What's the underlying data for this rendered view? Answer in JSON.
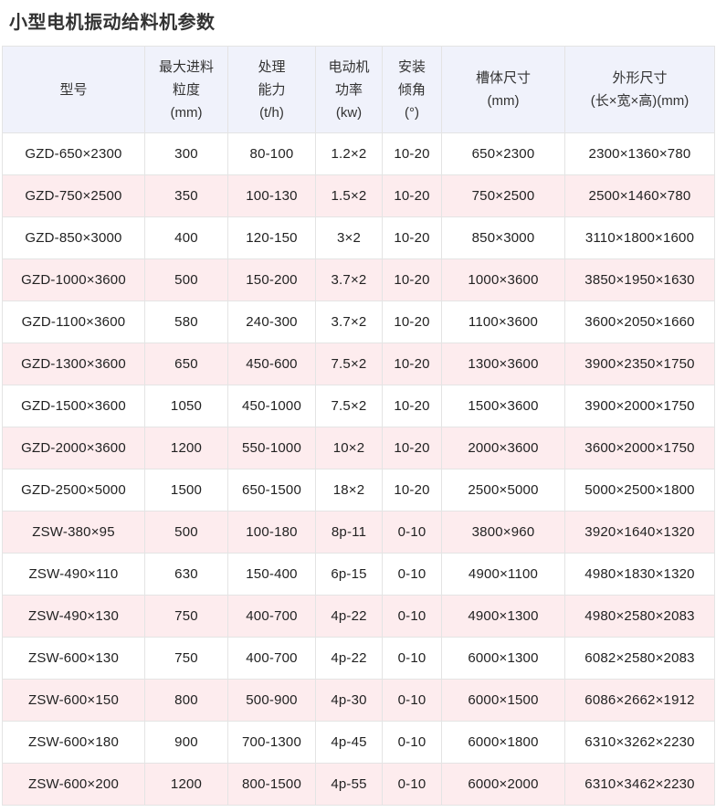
{
  "title": "小型电机振动给料机参数",
  "colors": {
    "header_bg": "#f0f2fb",
    "stripe_bg": "#fdecee",
    "border": "#e4e4e4",
    "title_text": "#333333",
    "cell_text": "#222222"
  },
  "table": {
    "columns": [
      {
        "key": "model",
        "label_lines": [
          "型号"
        ]
      },
      {
        "key": "max-feed-size",
        "label_lines": [
          "最大进料",
          "粒度",
          "(mm)"
        ]
      },
      {
        "key": "capacity",
        "label_lines": [
          "处理",
          "能力",
          "(t/h)"
        ]
      },
      {
        "key": "motor-power",
        "label_lines": [
          "电动机",
          "功率",
          "(kw)"
        ]
      },
      {
        "key": "install-angle",
        "label_lines": [
          "安装",
          "倾角",
          "(°)"
        ]
      },
      {
        "key": "trough-size",
        "label_lines": [
          "槽体尺寸",
          "(mm)"
        ]
      },
      {
        "key": "overall-size",
        "label_lines": [
          "外形尺寸",
          "(长×宽×高)(mm)"
        ]
      }
    ],
    "rows": [
      [
        "GZD-650×2300",
        "300",
        "80-100",
        "1.2×2",
        "10-20",
        "650×2300",
        "2300×1360×780"
      ],
      [
        "GZD-750×2500",
        "350",
        "100-130",
        "1.5×2",
        "10-20",
        "750×2500",
        "2500×1460×780"
      ],
      [
        "GZD-850×3000",
        "400",
        "120-150",
        "3×2",
        "10-20",
        "850×3000",
        "3110×1800×1600"
      ],
      [
        "GZD-1000×3600",
        "500",
        "150-200",
        "3.7×2",
        "10-20",
        "1000×3600",
        "3850×1950×1630"
      ],
      [
        "GZD-1100×3600",
        "580",
        "240-300",
        "3.7×2",
        "10-20",
        "1100×3600",
        "3600×2050×1660"
      ],
      [
        "GZD-1300×3600",
        "650",
        "450-600",
        "7.5×2",
        "10-20",
        "1300×3600",
        "3900×2350×1750"
      ],
      [
        "GZD-1500×3600",
        "1050",
        "450-1000",
        "7.5×2",
        "10-20",
        "1500×3600",
        "3900×2000×1750"
      ],
      [
        "GZD-2000×3600",
        "1200",
        "550-1000",
        "10×2",
        "10-20",
        "2000×3600",
        "3600×2000×1750"
      ],
      [
        "GZD-2500×5000",
        "1500",
        "650-1500",
        "18×2",
        "10-20",
        "2500×5000",
        "5000×2500×1800"
      ],
      [
        "ZSW-380×95",
        "500",
        "100-180",
        "8p-11",
        "0-10",
        "3800×960",
        "3920×1640×1320"
      ],
      [
        "ZSW-490×110",
        "630",
        "150-400",
        "6p-15",
        "0-10",
        "4900×1100",
        "4980×1830×1320"
      ],
      [
        "ZSW-490×130",
        "750",
        "400-700",
        "4p-22",
        "0-10",
        "4900×1300",
        "4980×2580×2083"
      ],
      [
        "ZSW-600×130",
        "750",
        "400-700",
        "4p-22",
        "0-10",
        "6000×1300",
        "6082×2580×2083"
      ],
      [
        "ZSW-600×150",
        "800",
        "500-900",
        "4p-30",
        "0-10",
        "6000×1500",
        "6086×2662×1912"
      ],
      [
        "ZSW-600×180",
        "900",
        "700-1300",
        "4p-45",
        "0-10",
        "6000×1800",
        "6310×3262×2230"
      ],
      [
        "ZSW-600×200",
        "1200",
        "800-1500",
        "4p-55",
        "0-10",
        "6000×2000",
        "6310×3462×2230"
      ]
    ]
  }
}
